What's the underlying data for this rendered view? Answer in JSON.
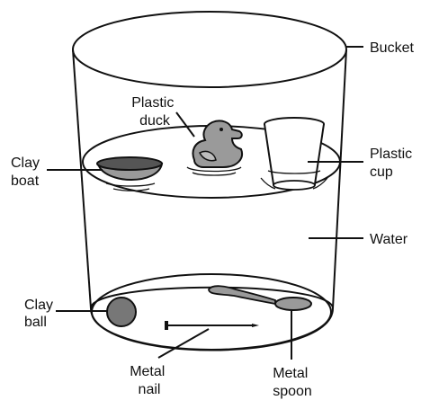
{
  "labels": {
    "bucket": "Bucket",
    "plastic_duck": [
      "Plastic",
      "duck"
    ],
    "clay_boat": [
      "Clay",
      "boat"
    ],
    "plastic_cup": [
      "Plastic",
      "cup"
    ],
    "water": "Water",
    "clay_ball": [
      "Clay",
      "ball"
    ],
    "metal_nail": [
      "Metal",
      "nail"
    ],
    "metal_spoon": [
      "Metal",
      "spoon"
    ]
  },
  "colors": {
    "outline": "#111111",
    "object_gray": "#9a9a9a",
    "boat_dark": "#555555",
    "ball_gray": "#777777",
    "background": "#ffffff"
  }
}
